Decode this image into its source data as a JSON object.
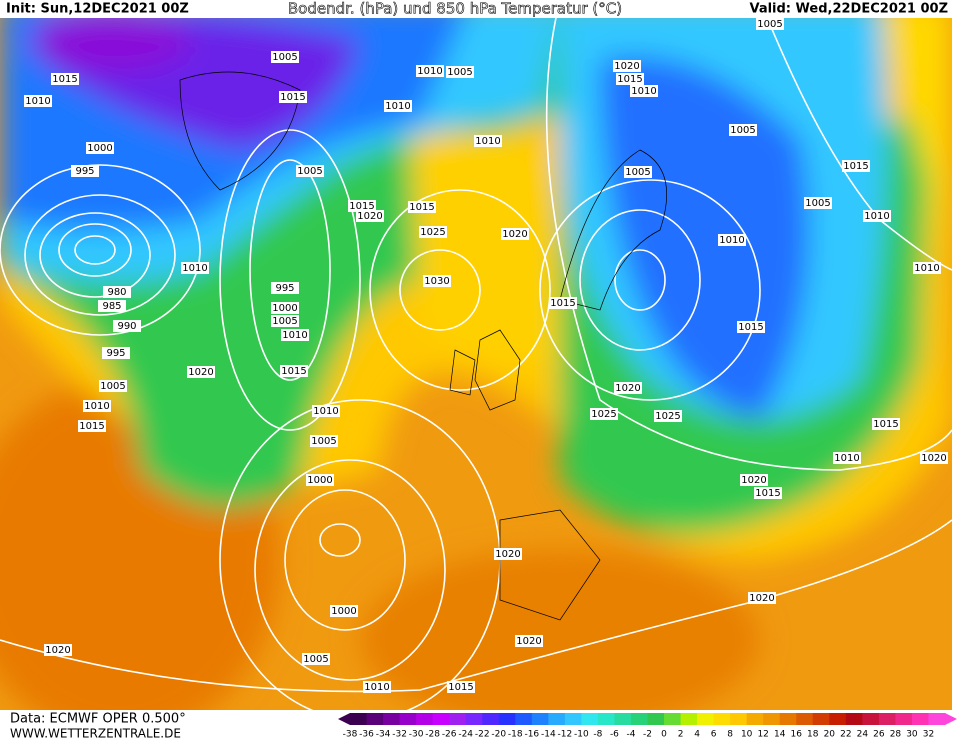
{
  "header": {
    "init": "Init: Sun,12DEC2021 00Z",
    "title": "Bodendr. (hPa) und 850 hPa Temperatur (°C)",
    "valid": "Valid: Wed,22DEC2021 00Z"
  },
  "footer": {
    "source": "Data: ECMWF OPER 0.500°",
    "url": "WWW.WETTERZENTRALE.DE"
  },
  "colorbar": {
    "ticks": [
      -38,
      -36,
      -34,
      -32,
      -30,
      -28,
      -26,
      -24,
      -22,
      -20,
      -18,
      -16,
      -14,
      -12,
      -10,
      -8,
      -6,
      -4,
      -2,
      0,
      2,
      4,
      6,
      8,
      10,
      12,
      14,
      16,
      18,
      20,
      22,
      24,
      26,
      28,
      30,
      32
    ],
    "colors": [
      "#3c0050",
      "#5a0078",
      "#7800a0",
      "#9600c8",
      "#b400e6",
      "#c800ff",
      "#a020f0",
      "#7828ff",
      "#5028ff",
      "#2832ff",
      "#1e5aff",
      "#1e82ff",
      "#28aaff",
      "#32c8ff",
      "#32e6f0",
      "#28e6c8",
      "#28dca0",
      "#28d278",
      "#32c850",
      "#64dc32",
      "#b4f000",
      "#f0f000",
      "#ffdc00",
      "#ffc800",
      "#f5aa00",
      "#f09600",
      "#e67800",
      "#dc5a00",
      "#d23c00",
      "#c81e00",
      "#b40a14",
      "#c8143c",
      "#dc1e64",
      "#f0288c",
      "#ff32b4",
      "#ff46dc"
    ]
  },
  "isobar_labels": [
    1015,
    1010,
    1005,
    1015,
    1010,
    1005,
    1010,
    1010,
    1000,
    995,
    1005,
    1015,
    1020,
    1015,
    1025,
    1020,
    1030,
    1010,
    980,
    985,
    990,
    995,
    1000,
    1005,
    1010,
    995,
    1005,
    1010,
    1015,
    1020,
    1015,
    1010,
    1005,
    1000,
    1000,
    1005,
    1010,
    1015,
    1020,
    1020,
    1020,
    1015,
    1020,
    1025,
    1025,
    1015,
    1010,
    1005,
    1005,
    1020,
    1015,
    1010,
    1005,
    1015,
    1005,
    1010,
    1010,
    1015,
    1010,
    1020,
    1020,
    1015,
    1020
  ]
}
